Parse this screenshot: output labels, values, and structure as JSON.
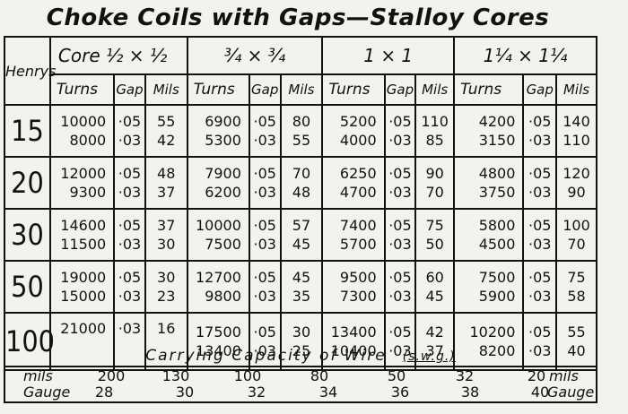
{
  "title": "Choke Coils with Gaps—Stalloy Cores",
  "henrys_label": "Henrys",
  "cores": [
    "Core ½ × ½",
    "¾ × ¾",
    "1 × 1",
    "1¼ × 1¼"
  ],
  "subheaders": {
    "turns": "Turns",
    "gap": "Gap",
    "mils": "Mils"
  },
  "rows": [
    {
      "henrys": "15",
      "cores": [
        {
          "turns": [
            "10000",
            "8000"
          ],
          "gap": [
            "·05",
            "·03"
          ],
          "mils": [
            "55",
            "42"
          ]
        },
        {
          "turns": [
            "6900",
            "5300"
          ],
          "gap": [
            "·05",
            "·03"
          ],
          "mils": [
            "80",
            "55"
          ]
        },
        {
          "turns": [
            "5200",
            "4000"
          ],
          "gap": [
            "·05",
            "·03"
          ],
          "mils": [
            "110",
            "85"
          ]
        },
        {
          "turns": [
            "4200",
            "3150"
          ],
          "gap": [
            "·05",
            "·03"
          ],
          "mils": [
            "140",
            "110"
          ]
        }
      ]
    },
    {
      "henrys": "20",
      "cores": [
        {
          "turns": [
            "12000",
            "9300"
          ],
          "gap": [
            "·05",
            "·03"
          ],
          "mils": [
            "48",
            "37"
          ]
        },
        {
          "turns": [
            "7900",
            "6200"
          ],
          "gap": [
            "·05",
            "·03"
          ],
          "mils": [
            "70",
            "48"
          ]
        },
        {
          "turns": [
            "6250",
            "4700"
          ],
          "gap": [
            "·05",
            "·03"
          ],
          "mils": [
            "90",
            "70"
          ]
        },
        {
          "turns": [
            "4800",
            "3750"
          ],
          "gap": [
            "·05",
            "·03"
          ],
          "mils": [
            "120",
            "90"
          ]
        }
      ]
    },
    {
      "henrys": "30",
      "cores": [
        {
          "turns": [
            "14600",
            "11500"
          ],
          "gap": [
            "·05",
            "·03"
          ],
          "mils": [
            "37",
            "30"
          ]
        },
        {
          "turns": [
            "10000",
            "7500"
          ],
          "gap": [
            "·05",
            "·03"
          ],
          "mils": [
            "57",
            "45"
          ]
        },
        {
          "turns": [
            "7400",
            "5700"
          ],
          "gap": [
            "·05",
            "·03"
          ],
          "mils": [
            "75",
            "50"
          ]
        },
        {
          "turns": [
            "5800",
            "4500"
          ],
          "gap": [
            "·05",
            "·03"
          ],
          "mils": [
            "100",
            "70"
          ]
        }
      ]
    },
    {
      "henrys": "50",
      "cores": [
        {
          "turns": [
            "19000",
            "15000"
          ],
          "gap": [
            "·05",
            "·03"
          ],
          "mils": [
            "30",
            "23"
          ]
        },
        {
          "turns": [
            "12700",
            "9800"
          ],
          "gap": [
            "·05",
            "·03"
          ],
          "mils": [
            "45",
            "35"
          ]
        },
        {
          "turns": [
            "9500",
            "7300"
          ],
          "gap": [
            "·05",
            "·03"
          ],
          "mils": [
            "60",
            "45"
          ]
        },
        {
          "turns": [
            "7500",
            "5900"
          ],
          "gap": [
            "·05",
            "·03"
          ],
          "mils": [
            "75",
            "58"
          ]
        }
      ]
    },
    {
      "henrys": "100",
      "cores": [
        {
          "turns": [
            "21000"
          ],
          "gap": [
            "·03"
          ],
          "mils": [
            "16"
          ]
        },
        {
          "turns": [
            "17500",
            "13400"
          ],
          "gap": [
            "·05",
            "·03"
          ],
          "mils": [
            "30",
            "25"
          ]
        },
        {
          "turns": [
            "13400",
            "10400"
          ],
          "gap": [
            "·05",
            "·03"
          ],
          "mils": [
            "42",
            "37"
          ]
        },
        {
          "turns": [
            "10200",
            "8200"
          ],
          "gap": [
            "·05",
            "·03"
          ],
          "mils": [
            "55",
            "40"
          ]
        }
      ]
    }
  ],
  "wire": {
    "title": "Carrying Capacity of Wire",
    "note": "(s.w.g.)",
    "mils_label": "mils",
    "gauge_label": "Gauge",
    "mils": [
      "200",
      "130",
      "100",
      "80",
      "50",
      "32",
      "20"
    ],
    "gauge": [
      "28",
      "30",
      "32",
      "34",
      "36",
      "38",
      "40"
    ]
  }
}
